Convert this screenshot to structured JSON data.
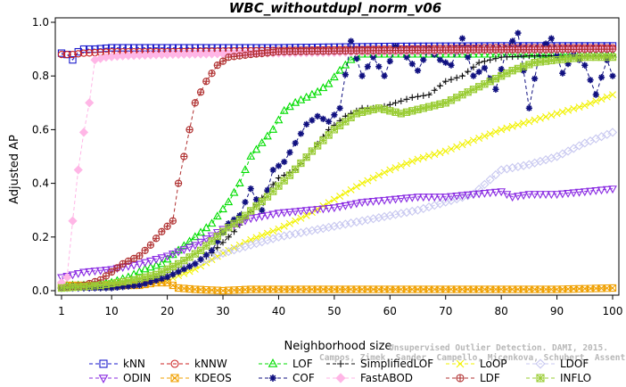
{
  "chart_data": {
    "type": "line",
    "title": "WBC_withoutdupl_norm_v06",
    "xlabel": "Neighborhood size",
    "ylabel": "Adjusted AP",
    "xlim": [
      1,
      100
    ],
    "ylim": [
      0,
      1.0
    ],
    "xticks": [
      "1",
      "10",
      "20",
      "30",
      "40",
      "50",
      "60",
      "70",
      "80",
      "90",
      "100"
    ],
    "yticks": [
      "0.0",
      "0.2",
      "0.4",
      "0.6",
      "0.8",
      "1.0"
    ],
    "watermark": {
      "line1": "Unsupervised Outlier Detection. DAMI, 2015.",
      "line2": "Campos, Zimek, Sander, Campello, Micenkova, Schubert, Assent, Houle"
    },
    "series": [
      {
        "name": "kNN",
        "color": "#1a1acc",
        "marker": "square",
        "dash": "4,3",
        "points": [
          [
            1,
            0.885
          ],
          [
            2,
            0.88
          ],
          [
            3,
            0.86
          ],
          [
            4,
            0.89
          ],
          [
            5,
            0.9
          ],
          [
            7,
            0.9
          ],
          [
            10,
            0.905
          ],
          [
            20,
            0.905
          ],
          [
            40,
            0.905
          ],
          [
            60,
            0.91
          ],
          [
            80,
            0.912
          ],
          [
            100,
            0.912
          ]
        ]
      },
      {
        "name": "kNNW",
        "color": "#cc2222",
        "marker": "circle",
        "dash": "4,3",
        "points": [
          [
            1,
            0.88
          ],
          [
            3,
            0.88
          ],
          [
            5,
            0.885
          ],
          [
            10,
            0.89
          ],
          [
            20,
            0.89
          ],
          [
            40,
            0.895
          ],
          [
            60,
            0.9
          ],
          [
            80,
            0.905
          ],
          [
            100,
            0.905
          ]
        ]
      },
      {
        "name": "LOF",
        "color": "#00dd00",
        "marker": "triangle-up",
        "dash": "4,3",
        "points": [
          [
            1,
            0.02
          ],
          [
            6,
            0.02
          ],
          [
            10,
            0.03
          ],
          [
            13,
            0.05
          ],
          [
            16,
            0.08
          ],
          [
            19,
            0.1
          ],
          [
            22,
            0.15
          ],
          [
            25,
            0.2
          ],
          [
            28,
            0.25
          ],
          [
            31,
            0.33
          ],
          [
            33,
            0.4
          ],
          [
            35,
            0.5
          ],
          [
            37,
            0.55
          ],
          [
            39,
            0.6
          ],
          [
            41,
            0.67
          ],
          [
            43,
            0.7
          ],
          [
            45,
            0.72
          ],
          [
            47,
            0.74
          ],
          [
            49,
            0.77
          ],
          [
            51,
            0.82
          ],
          [
            53,
            0.86
          ],
          [
            55,
            0.88
          ],
          [
            60,
            0.88
          ],
          [
            70,
            0.88
          ],
          [
            80,
            0.88
          ],
          [
            90,
            0.88
          ],
          [
            100,
            0.88
          ]
        ]
      },
      {
        "name": "SimplifiedLOF",
        "color": "#111111",
        "marker": "plus",
        "dash": "4,3",
        "points": [
          [
            1,
            0.01
          ],
          [
            8,
            0.01
          ],
          [
            12,
            0.02
          ],
          [
            16,
            0.04
          ],
          [
            20,
            0.06
          ],
          [
            24,
            0.09
          ],
          [
            28,
            0.14
          ],
          [
            32,
            0.22
          ],
          [
            36,
            0.32
          ],
          [
            40,
            0.42
          ],
          [
            43,
            0.45
          ],
          [
            46,
            0.52
          ],
          [
            49,
            0.6
          ],
          [
            52,
            0.65
          ],
          [
            55,
            0.68
          ],
          [
            58,
            0.68
          ],
          [
            61,
            0.7
          ],
          [
            64,
            0.72
          ],
          [
            67,
            0.73
          ],
          [
            70,
            0.78
          ],
          [
            73,
            0.8
          ],
          [
            76,
            0.85
          ],
          [
            80,
            0.87
          ],
          [
            85,
            0.875
          ],
          [
            90,
            0.875
          ],
          [
            95,
            0.875
          ],
          [
            100,
            0.875
          ]
        ]
      },
      {
        "name": "LoOP",
        "color": "#f2f200",
        "marker": "x",
        "dash": "4,3",
        "points": [
          [
            1,
            0.01
          ],
          [
            10,
            0.015
          ],
          [
            15,
            0.02
          ],
          [
            20,
            0.04
          ],
          [
            25,
            0.08
          ],
          [
            30,
            0.14
          ],
          [
            35,
            0.19
          ],
          [
            40,
            0.23
          ],
          [
            45,
            0.28
          ],
          [
            50,
            0.34
          ],
          [
            55,
            0.4
          ],
          [
            60,
            0.45
          ],
          [
            65,
            0.49
          ],
          [
            70,
            0.52
          ],
          [
            75,
            0.56
          ],
          [
            80,
            0.6
          ],
          [
            85,
            0.63
          ],
          [
            90,
            0.66
          ],
          [
            95,
            0.69
          ],
          [
            100,
            0.73
          ]
        ]
      },
      {
        "name": "LDOF",
        "color": "#c8c8f0",
        "marker": "diamond",
        "dash": "4,3",
        "points": [
          [
            1,
            0.01
          ],
          [
            10,
            0.015
          ],
          [
            15,
            0.03
          ],
          [
            20,
            0.06
          ],
          [
            25,
            0.1
          ],
          [
            30,
            0.14
          ],
          [
            35,
            0.17
          ],
          [
            40,
            0.2
          ],
          [
            45,
            0.22
          ],
          [
            50,
            0.24
          ],
          [
            55,
            0.26
          ],
          [
            60,
            0.28
          ],
          [
            65,
            0.3
          ],
          [
            70,
            0.33
          ],
          [
            75,
            0.36
          ],
          [
            80,
            0.45
          ],
          [
            85,
            0.47
          ],
          [
            90,
            0.5
          ],
          [
            95,
            0.55
          ],
          [
            100,
            0.59
          ]
        ]
      },
      {
        "name": "ODIN",
        "color": "#8a2be2",
        "marker": "triangle-down",
        "dash": "4,3",
        "points": [
          [
            1,
            0.05
          ],
          [
            5,
            0.07
          ],
          [
            10,
            0.08
          ],
          [
            15,
            0.1
          ],
          [
            20,
            0.13
          ],
          [
            25,
            0.17
          ],
          [
            30,
            0.23
          ],
          [
            35,
            0.27
          ],
          [
            40,
            0.29
          ],
          [
            45,
            0.3
          ],
          [
            50,
            0.31
          ],
          [
            55,
            0.33
          ],
          [
            60,
            0.34
          ],
          [
            65,
            0.35
          ],
          [
            70,
            0.35
          ],
          [
            75,
            0.36
          ],
          [
            80,
            0.37
          ],
          [
            82,
            0.35
          ],
          [
            85,
            0.36
          ],
          [
            90,
            0.36
          ],
          [
            95,
            0.37
          ],
          [
            100,
            0.38
          ]
        ]
      },
      {
        "name": "KDEOS",
        "color": "#f0a000",
        "marker": "square-x",
        "dash": "4,3",
        "points": [
          [
            1,
            0.02
          ],
          [
            10,
            0.02
          ],
          [
            15,
            0.02
          ],
          [
            18,
            0.03
          ],
          [
            20,
            0.03
          ],
          [
            22,
            0.01
          ],
          [
            25,
            0.005
          ],
          [
            30,
            0.0
          ],
          [
            35,
            0.005
          ],
          [
            40,
            0.005
          ],
          [
            50,
            0.005
          ],
          [
            60,
            0.005
          ],
          [
            70,
            0.005
          ],
          [
            80,
            0.005
          ],
          [
            90,
            0.005
          ],
          [
            100,
            0.01
          ]
        ]
      },
      {
        "name": "COF",
        "color": "#101080",
        "marker": "star",
        "dash": "4,3",
        "points": [
          [
            1,
            0.01
          ],
          [
            10,
            0.01
          ],
          [
            15,
            0.02
          ],
          [
            20,
            0.05
          ],
          [
            25,
            0.1
          ],
          [
            28,
            0.15
          ],
          [
            31,
            0.25
          ],
          [
            33,
            0.28
          ],
          [
            35,
            0.38
          ],
          [
            37,
            0.3
          ],
          [
            39,
            0.45
          ],
          [
            41,
            0.48
          ],
          [
            43,
            0.55
          ],
          [
            45,
            0.62
          ],
          [
            47,
            0.65
          ],
          [
            49,
            0.63
          ],
          [
            51,
            0.68
          ],
          [
            53,
            0.93
          ],
          [
            55,
            0.8
          ],
          [
            57,
            0.87
          ],
          [
            59,
            0.8
          ],
          [
            61,
            0.91
          ],
          [
            63,
            0.87
          ],
          [
            65,
            0.82
          ],
          [
            67,
            0.9
          ],
          [
            69,
            0.86
          ],
          [
            71,
            0.84
          ],
          [
            73,
            0.94
          ],
          [
            75,
            0.8
          ],
          [
            77,
            0.83
          ],
          [
            79,
            0.75
          ],
          [
            81,
            0.9
          ],
          [
            83,
            0.96
          ],
          [
            85,
            0.68
          ],
          [
            87,
            0.9
          ],
          [
            89,
            0.94
          ],
          [
            91,
            0.81
          ],
          [
            93,
            0.88
          ],
          [
            95,
            0.84
          ],
          [
            97,
            0.73
          ],
          [
            99,
            0.86
          ],
          [
            100,
            0.8
          ]
        ]
      },
      {
        "name": "FastABOD",
        "color": "#ffb6e6",
        "marker": "diamond-filled",
        "dash": "4,3",
        "points": [
          [
            1,
            0.03
          ],
          [
            2,
            0.05
          ],
          [
            3,
            0.26
          ],
          [
            4,
            0.45
          ],
          [
            5,
            0.59
          ],
          [
            6,
            0.7
          ],
          [
            7,
            0.86
          ],
          [
            9,
            0.87
          ],
          [
            12,
            0.875
          ],
          [
            20,
            0.88
          ],
          [
            40,
            0.885
          ],
          [
            60,
            0.89
          ],
          [
            80,
            0.895
          ],
          [
            100,
            0.9
          ]
        ]
      },
      {
        "name": "LDF",
        "color": "#b03030",
        "marker": "circle-plus",
        "dash": "4,3",
        "points": [
          [
            1,
            0.01
          ],
          [
            5,
            0.02
          ],
          [
            8,
            0.04
          ],
          [
            10,
            0.07
          ],
          [
            12,
            0.1
          ],
          [
            15,
            0.13
          ],
          [
            17,
            0.17
          ],
          [
            19,
            0.22
          ],
          [
            21,
            0.26
          ],
          [
            22,
            0.4
          ],
          [
            23,
            0.5
          ],
          [
            24,
            0.6
          ],
          [
            25,
            0.7
          ],
          [
            27,
            0.78
          ],
          [
            29,
            0.84
          ],
          [
            31,
            0.87
          ],
          [
            35,
            0.88
          ],
          [
            40,
            0.89
          ],
          [
            60,
            0.895
          ],
          [
            100,
            0.9
          ]
        ]
      },
      {
        "name": "INFLO",
        "color": "#99cc33",
        "marker": "square-star",
        "dash": "4,3",
        "points": [
          [
            1,
            0.01
          ],
          [
            8,
            0.02
          ],
          [
            14,
            0.04
          ],
          [
            18,
            0.06
          ],
          [
            22,
            0.1
          ],
          [
            26,
            0.15
          ],
          [
            30,
            0.22
          ],
          [
            34,
            0.28
          ],
          [
            38,
            0.35
          ],
          [
            42,
            0.43
          ],
          [
            46,
            0.52
          ],
          [
            50,
            0.6
          ],
          [
            54,
            0.66
          ],
          [
            58,
            0.68
          ],
          [
            62,
            0.66
          ],
          [
            66,
            0.68
          ],
          [
            70,
            0.7
          ],
          [
            74,
            0.74
          ],
          [
            78,
            0.78
          ],
          [
            82,
            0.82
          ],
          [
            86,
            0.85
          ],
          [
            90,
            0.86
          ],
          [
            95,
            0.87
          ],
          [
            100,
            0.87
          ]
        ]
      }
    ]
  }
}
